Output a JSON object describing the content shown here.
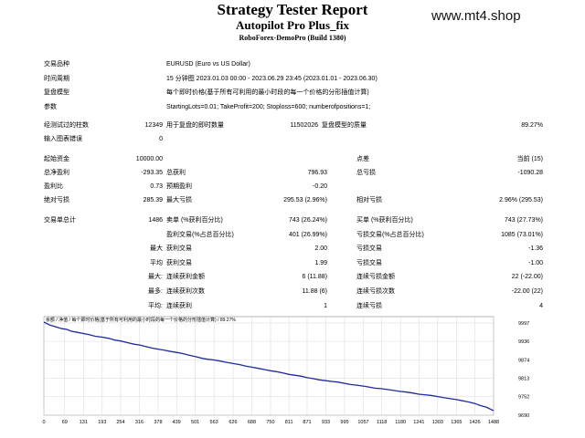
{
  "header": {
    "title": "Strategy Tester Report",
    "subtitle": "Autopilot Pro Plus_fix",
    "server": "RoboForex-DemoPro (Build 1380)",
    "watermark": "www.mt4.shop"
  },
  "info": [
    {
      "label": "交易品种",
      "value": "EURUSD (Euro vs US Dollar)"
    },
    {
      "label": "时间周期",
      "value": "15 分钟图 2023.01.03 00:00 - 2023.06.29 23:45 (2023.01.01 - 2023.06.30)"
    },
    {
      "label": "复盘模型",
      "value": "每个即时价格(基于所有可利用的最小时段的每一个价格的分形插值计算)"
    },
    {
      "label": "参数",
      "value": "StartingLots=0.01; TakeProfit=200; Stoploss=600; numberofpositions=1;"
    }
  ],
  "bars": {
    "label": "经测试过的柱数",
    "value": "12349",
    "ticks_label": "用于复盘的即时数量",
    "ticks_value": "11502026",
    "quality_label": "复盘模型的质量",
    "quality_value": "89.27%"
  },
  "errors": {
    "label": "输入图表错误",
    "value": "0"
  },
  "stats": {
    "initial_deposit": {
      "label": "起始资金",
      "value": "10000.00"
    },
    "spread": {
      "label": "点差",
      "value": "当前 (15)"
    },
    "net_profit": {
      "label": "总净盈利",
      "value": "-293.35"
    },
    "gross_profit": {
      "label": "总获利",
      "value": "796.93"
    },
    "gross_loss": {
      "label": "总亏损",
      "value": "-1090.28"
    },
    "profit_factor": {
      "label": "盈利比",
      "value": "0.73"
    },
    "expected_payoff": {
      "label": "预期盈利",
      "value": "-0.20"
    },
    "abs_drawdown": {
      "label": "绝对亏损",
      "value": "285.39"
    },
    "max_drawdown": {
      "label": "最大亏损",
      "value": "295.53 (2.96%)"
    },
    "rel_drawdown": {
      "label": "相对亏损",
      "value": "2.96% (295.53)"
    },
    "total_trades": {
      "label": "交易单总计",
      "value": "1486"
    },
    "short_positions": {
      "label": "卖单 (%获利百分比)",
      "value": "743 (26.24%)"
    },
    "long_positions": {
      "label": "买单 (%获利百分比)",
      "value": "743 (27.73%)"
    },
    "profit_trades": {
      "label": "盈利交易(%占总百分比)",
      "value": "401 (26.99%)"
    },
    "loss_trades": {
      "label": "亏损交易(%占总百分比)",
      "value": "1085 (73.01%)"
    },
    "largest_label": "最大",
    "largest_profit": {
      "label": "获利交易",
      "value": "2.00"
    },
    "largest_loss": {
      "label": "亏损交易",
      "value": "-1.36"
    },
    "average_label": "平均",
    "average_profit": {
      "label": "获利交易",
      "value": "1.99"
    },
    "average_loss": {
      "label": "亏损交易",
      "value": "-1.00"
    },
    "max_label": "最大:",
    "max_consec_wins": {
      "label": "连续获利金额",
      "value": "6 (11.88)"
    },
    "max_consec_losses": {
      "label": "连续亏损金额",
      "value": "22 (-22.00)"
    },
    "maximal_label": "最多:",
    "maximal_consec_profit": {
      "label": "连续获利次数",
      "value": "11.88 (6)"
    },
    "maximal_consec_loss": {
      "label": "连续亏损次数",
      "value": "-22.00 (22)"
    },
    "avg_consec_label": "平均:",
    "avg_consec_wins": {
      "label": "连续获利",
      "value": "1"
    },
    "avg_consec_losses": {
      "label": "连续亏损",
      "value": "4"
    }
  },
  "chart_data": {
    "type": "line",
    "title": "余额 / 净值 / 每个即时价格(基于所有可利用的最小时段的每一个价格的分形插值计算) / 89.27%",
    "x_ticks": [
      "0",
      "69",
      "131",
      "193",
      "254",
      "316",
      "378",
      "439",
      "501",
      "563",
      "626",
      "688",
      "750",
      "811",
      "871",
      "933",
      "995",
      "1057",
      "1118",
      "1180",
      "1241",
      "1303",
      "1365",
      "1426",
      "1488"
    ],
    "y_ticks": [
      "9997",
      "9936",
      "9874",
      "9813",
      "9752",
      "9690"
    ],
    "xlim": [
      0,
      1488
    ],
    "ylim": [
      9690,
      10000
    ],
    "colors": {
      "line": "#1f2a9c",
      "grid": "#d8d8d8",
      "border": "#888888"
    },
    "series": [
      {
        "x": [
          0,
          20,
          40,
          60,
          75,
          90,
          110,
          131,
          150,
          170,
          193,
          215,
          235,
          254,
          275,
          300,
          316,
          340,
          360,
          378,
          400,
          420,
          439,
          460,
          480,
          501,
          525,
          545,
          563,
          585,
          605,
          626,
          650,
          670,
          688,
          710,
          730,
          750,
          770,
          790,
          811,
          830,
          850,
          871,
          890,
          910,
          933,
          955,
          975,
          995,
          1015,
          1035,
          1057,
          1075,
          1095,
          1118,
          1140,
          1160,
          1180,
          1200,
          1220,
          1241,
          1260,
          1280,
          1303,
          1325,
          1345,
          1365,
          1385,
          1405,
          1426,
          1445,
          1465,
          1488
        ],
        "y": [
          10000,
          9990,
          9984,
          9978,
          9976,
          9970,
          9966,
          9962,
          9958,
          9953,
          9950,
          9946,
          9940,
          9937,
          9932,
          9926,
          9924,
          9918,
          9913,
          9910,
          9906,
          9902,
          9899,
          9895,
          9890,
          9885,
          9879,
          9876,
          9874,
          9870,
          9866,
          9862,
          9858,
          9853,
          9850,
          9846,
          9842,
          9838,
          9835,
          9831,
          9826,
          9823,
          9820,
          9815,
          9812,
          9808,
          9805,
          9802,
          9800,
          9796,
          9792,
          9790,
          9787,
          9784,
          9780,
          9778,
          9775,
          9772,
          9769,
          9767,
          9764,
          9760,
          9758,
          9756,
          9752,
          9748,
          9745,
          9742,
          9738,
          9734,
          9729,
          9722,
          9716,
          9705
        ]
      }
    ]
  }
}
